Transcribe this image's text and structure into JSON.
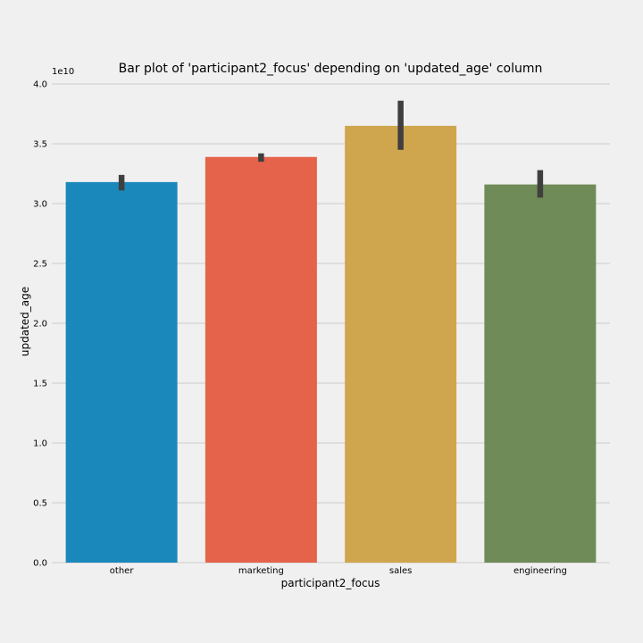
{
  "chart_data": {
    "type": "bar",
    "title": "Bar plot of 'participant2_focus' depending on 'updated_age' column",
    "xlabel": "participant2_focus",
    "ylabel": "updated_age",
    "y_offset_label": "1e10",
    "y_scale": 10000000000,
    "ylim": [
      0,
      4.0
    ],
    "yticks": [
      "0.0",
      "0.5",
      "1.0",
      "1.5",
      "2.0",
      "2.5",
      "3.0",
      "3.5",
      "4.0"
    ],
    "grid": true,
    "categories": [
      "other",
      "marketing",
      "sales",
      "engineering"
    ],
    "values": [
      3.18,
      3.39,
      3.65,
      3.16
    ],
    "error_bars": [
      [
        3.11,
        3.24
      ],
      [
        3.35,
        3.42
      ],
      [
        3.45,
        3.86
      ],
      [
        3.05,
        3.28
      ]
    ],
    "colors": [
      "#1b88bb",
      "#e5634a",
      "#cfa64d",
      "#6f8b58"
    ],
    "error_color": "#3f3f3f",
    "grid_color": "#cbcbcb",
    "background": "#f0f0f0"
  }
}
